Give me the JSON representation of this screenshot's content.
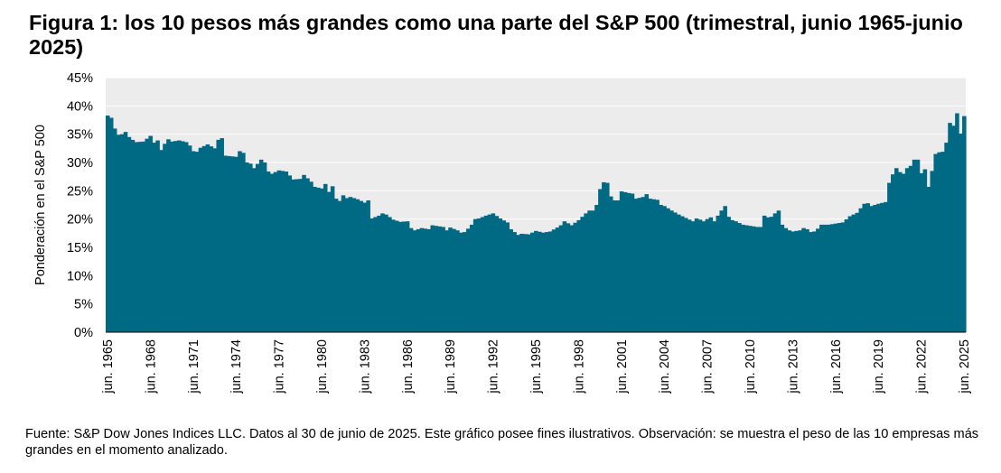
{
  "title": "Figura 1: los 10 pesos más grandes como una parte del S&P 500 (trimestral, junio 1965-junio 2025)",
  "footer": "Fuente: S&P Dow Jones Indices LLC. Datos al 30 de junio de 2025. Este gráfico posee fines ilustrativos. Observación: se muestra el peso de las 10 empresas más grandes en el momento analizado.",
  "colors": {
    "bar": "#006983",
    "plot_background": "#ececec",
    "gridline": "#ffffff"
  },
  "chart_data": {
    "type": "area",
    "ylabel": "Ponderación en el S&P 500",
    "xlabel": "",
    "ylim": [
      0,
      45
    ],
    "y_ticks": [
      "0%",
      "5%",
      "10%",
      "15%",
      "20%",
      "25%",
      "30%",
      "35%",
      "40%",
      "45%"
    ],
    "x_ticks": [
      "jun. 1965",
      "jun. 1968",
      "jun. 1971",
      "jun. 1974",
      "jun. 1977",
      "jun. 1980",
      "jun. 1983",
      "jun. 1986",
      "jun. 1989",
      "jun. 1992",
      "jun. 1995",
      "jun. 1998",
      "jun. 2001",
      "jun. 2004",
      "jun. 2007",
      "jun. 2010",
      "jun. 2013",
      "jun. 2016",
      "jun. 2019",
      "jun. 2022",
      "jun. 2025"
    ],
    "grid": true,
    "frequency": "quarterly",
    "x_start": "jun. 1965",
    "x_end": "jun. 2025",
    "keypoints": [
      [
        "jun. 1965",
        38.3
      ],
      [
        "sep. 1965",
        37.9
      ],
      [
        "dic. 1965",
        36.0
      ],
      [
        "mar. 1966",
        34.9
      ],
      [
        "jun. 1966",
        35.0
      ],
      [
        "sep. 1966",
        35.4
      ],
      [
        "dic. 1966",
        34.5
      ],
      [
        "mar. 1967",
        34.0
      ],
      [
        "jun. 1967",
        33.6
      ],
      [
        "dic. 1967",
        33.7
      ],
      [
        "jun. 1968",
        34.7
      ],
      [
        "sep. 1968",
        33.5
      ],
      [
        "dic. 1968",
        33.9
      ],
      [
        "mar. 1969",
        32.2
      ],
      [
        "jun. 1969",
        33.3
      ],
      [
        "sep. 1969",
        34.1
      ],
      [
        "dic. 1969",
        33.7
      ],
      [
        "jun. 1970",
        33.9
      ],
      [
        "dic. 1970",
        33.6
      ],
      [
        "mar. 1971",
        33.0
      ],
      [
        "jun. 1971",
        32.0
      ],
      [
        "sep. 1971",
        31.9
      ],
      [
        "dic. 1971",
        32.6
      ],
      [
        "jun. 1972",
        33.2
      ],
      [
        "dic. 1972",
        32.5
      ],
      [
        "mar. 1973",
        34.0
      ],
      [
        "jun. 1973",
        34.3
      ],
      [
        "sep. 1973",
        31.2
      ],
      [
        "jun. 1974",
        31.0
      ],
      [
        "sep. 1974",
        32.0
      ],
      [
        "dic. 1974",
        31.7
      ],
      [
        "mar. 1975",
        30.0
      ],
      [
        "jun. 1975",
        29.8
      ],
      [
        "sep. 1975",
        29.0
      ],
      [
        "mar. 1976",
        30.5
      ],
      [
        "jun. 1976",
        30.0
      ],
      [
        "sep. 1976",
        28.4
      ],
      [
        "dic. 1976",
        28.0
      ],
      [
        "jun. 1977",
        28.6
      ],
      [
        "dic. 1977",
        28.4
      ],
      [
        "jun. 1978",
        27.0
      ],
      [
        "dic. 1978",
        27.1
      ],
      [
        "mar. 1979",
        27.8
      ],
      [
        "sep. 1979",
        26.6
      ],
      [
        "dic. 1979",
        25.7
      ],
      [
        "jun. 1980",
        25.4
      ],
      [
        "sep. 1980",
        26.2
      ],
      [
        "dic. 1980",
        24.8
      ],
      [
        "mar. 1981",
        25.8
      ],
      [
        "jun. 1981",
        23.6
      ],
      [
        "sep. 1981",
        23.2
      ],
      [
        "dic. 1981",
        24.2
      ],
      [
        "mar. 1982",
        23.7
      ],
      [
        "jun. 1982",
        23.9
      ],
      [
        "dic. 1982",
        23.5
      ],
      [
        "jun. 1983",
        22.9
      ],
      [
        "sep. 1983",
        23.3
      ],
      [
        "dic. 1983",
        20.1
      ],
      [
        "jun. 1984",
        20.6
      ],
      [
        "sep. 1984",
        21.0
      ],
      [
        "dic. 1984",
        20.8
      ],
      [
        "jun. 1985",
        19.9
      ],
      [
        "dic. 1985",
        19.5
      ],
      [
        "jun. 1986",
        19.6
      ],
      [
        "sep. 1986",
        18.4
      ],
      [
        "dic. 1986",
        18.0
      ],
      [
        "jun. 1987",
        18.4
      ],
      [
        "dic. 1987",
        18.2
      ],
      [
        "mar. 1988",
        18.9
      ],
      [
        "dic. 1988",
        18.6
      ],
      [
        "mar. 1989",
        18.0
      ],
      [
        "jun. 1989",
        18.5
      ],
      [
        "dic. 1989",
        18.0
      ],
      [
        "mar. 1990",
        17.6
      ],
      [
        "jun. 1990",
        17.7
      ],
      [
        "sep. 1990",
        18.3
      ],
      [
        "dic. 1990",
        19.0
      ],
      [
        "mar. 1991",
        20.0
      ],
      [
        "jun. 1991",
        20.1
      ],
      [
        "dic. 1991",
        20.6
      ],
      [
        "jun. 1992",
        21.0
      ],
      [
        "dic. 1992",
        20.1
      ],
      [
        "jun. 1993",
        19.4
      ],
      [
        "sep. 1993",
        18.2
      ],
      [
        "dic. 1993",
        17.7
      ],
      [
        "mar. 1994",
        17.2
      ],
      [
        "jun. 1994",
        17.4
      ],
      [
        "dic. 1994",
        17.3
      ],
      [
        "mar. 1995",
        17.6
      ],
      [
        "jun. 1995",
        17.9
      ],
      [
        "dic. 1995",
        17.6
      ],
      [
        "jun. 1996",
        17.8
      ],
      [
        "dic. 1996",
        18.5
      ],
      [
        "mar. 1997",
        18.9
      ],
      [
        "jun. 1997",
        19.6
      ],
      [
        "dic. 1997",
        18.9
      ],
      [
        "jun. 1998",
        19.8
      ],
      [
        "dic. 1998",
        21.0
      ],
      [
        "mar. 1999",
        21.5
      ],
      [
        "jun. 1999",
        21.5
      ],
      [
        "sep. 1999",
        22.5
      ],
      [
        "dic. 1999",
        25.3
      ],
      [
        "mar. 2000",
        26.5
      ],
      [
        "jun. 2000",
        26.4
      ],
      [
        "sep. 2000",
        24.0
      ],
      [
        "dic. 2000",
        23.3
      ],
      [
        "mar. 2001",
        23.3
      ],
      [
        "jun. 2001",
        24.9
      ],
      [
        "dic. 2001",
        24.6
      ],
      [
        "mar. 2002",
        24.5
      ],
      [
        "jun. 2002",
        23.6
      ],
      [
        "dic. 2002",
        23.9
      ],
      [
        "mar. 2003",
        24.4
      ],
      [
        "jun. 2003",
        23.6
      ],
      [
        "dic. 2003",
        23.4
      ],
      [
        "mar. 2004",
        22.5
      ],
      [
        "jun. 2004",
        22.3
      ],
      [
        "dic. 2004",
        21.5
      ],
      [
        "jun. 2005",
        20.8
      ],
      [
        "dic. 2005",
        20.2
      ],
      [
        "jun. 2006",
        19.6
      ],
      [
        "sep. 2006",
        20.1
      ],
      [
        "dic. 2006",
        19.9
      ],
      [
        "mar. 2007",
        19.6
      ],
      [
        "jun. 2007",
        20.0
      ],
      [
        "sep. 2007",
        20.3
      ],
      [
        "dic. 2007",
        19.6
      ],
      [
        "mar. 2008",
        20.6
      ],
      [
        "jun. 2008",
        21.5
      ],
      [
        "sep. 2008",
        22.3
      ],
      [
        "dic. 2008",
        20.4
      ],
      [
        "mar. 2009",
        19.8
      ],
      [
        "jun. 2009",
        19.6
      ],
      [
        "dic. 2009",
        19.0
      ],
      [
        "jun. 2010",
        18.8
      ],
      [
        "dic. 2010",
        18.6
      ],
      [
        "mar. 2011",
        18.6
      ],
      [
        "jun. 2011",
        20.6
      ],
      [
        "sep. 2011",
        20.3
      ],
      [
        "dic. 2011",
        20.4
      ],
      [
        "mar. 2012",
        21.0
      ],
      [
        "jun. 2012",
        21.5
      ],
      [
        "sep. 2012",
        19.0
      ],
      [
        "dic. 2012",
        18.4
      ],
      [
        "mar. 2013",
        18.0
      ],
      [
        "jun. 2013",
        17.8
      ],
      [
        "dic. 2013",
        18.0
      ],
      [
        "mar. 2014",
        18.4
      ],
      [
        "jun. 2014",
        18.2
      ],
      [
        "sep. 2014",
        17.7
      ],
      [
        "dic. 2014",
        17.8
      ],
      [
        "mar. 2015",
        18.3
      ],
      [
        "jun. 2015",
        19.0
      ],
      [
        "dic. 2015",
        19.0
      ],
      [
        "jun. 2016",
        19.2
      ],
      [
        "dic. 2016",
        19.4
      ],
      [
        "jun. 2017",
        20.5
      ],
      [
        "dic. 2017",
        21.1
      ],
      [
        "jun. 2018",
        22.7
      ],
      [
        "sep. 2018",
        22.8
      ],
      [
        "dic. 2018",
        22.3
      ],
      [
        "jun. 2019",
        22.7
      ],
      [
        "dic. 2019",
        23.0
      ],
      [
        "mar. 2020",
        26.4
      ],
      [
        "jun. 2020",
        27.9
      ],
      [
        "sep. 2020",
        29.0
      ],
      [
        "dic. 2020",
        28.3
      ],
      [
        "mar. 2021",
        28.0
      ],
      [
        "jun. 2021",
        29.0
      ],
      [
        "sep. 2021",
        29.4
      ],
      [
        "dic. 2021",
        30.5
      ],
      [
        "mar. 2022",
        30.5
      ],
      [
        "jun. 2022",
        28.1
      ],
      [
        "sep. 2022",
        28.8
      ],
      [
        "dic. 2022",
        25.7
      ],
      [
        "mar. 2023",
        28.5
      ],
      [
        "jun. 2023",
        31.5
      ],
      [
        "sep. 2023",
        31.8
      ],
      [
        "dic. 2023",
        31.9
      ],
      [
        "mar. 2024",
        33.5
      ],
      [
        "jun. 2024",
        37.0
      ],
      [
        "sep. 2024",
        36.5
      ],
      [
        "dic. 2024",
        38.7
      ],
      [
        "mar. 2025",
        35.1
      ],
      [
        "jun. 2025",
        38.2
      ]
    ]
  }
}
